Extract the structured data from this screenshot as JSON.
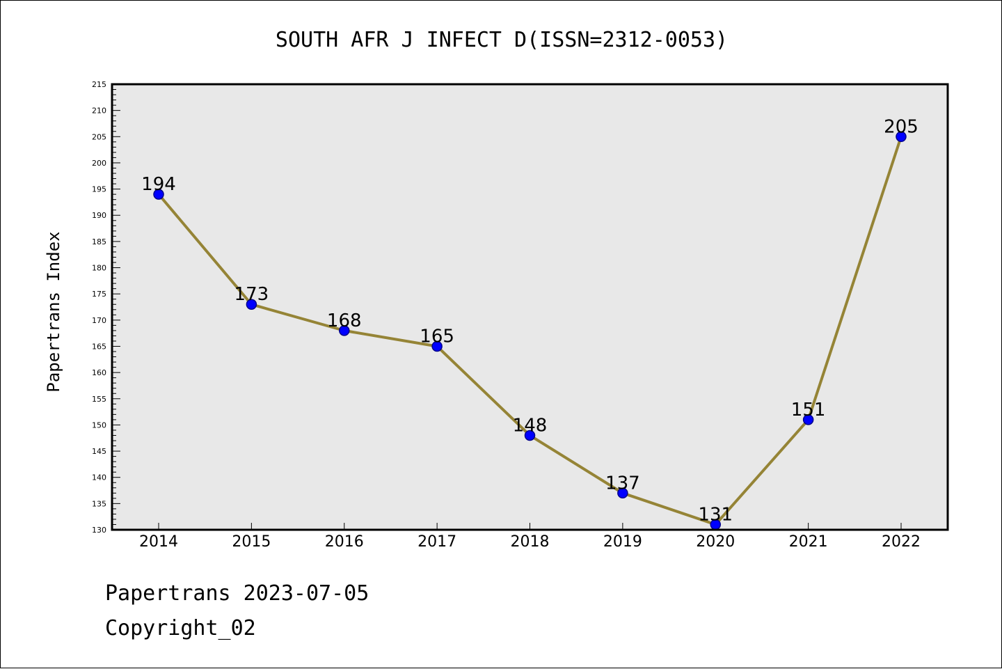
{
  "chart_data": {
    "type": "line",
    "title": "SOUTH AFR J INFECT D(ISSN=2312-0053)",
    "xlabel": "",
    "ylabel": "Papertrans Index",
    "categories": [
      "2014",
      "2015",
      "2016",
      "2017",
      "2018",
      "2019",
      "2020",
      "2021",
      "2022"
    ],
    "series": [
      {
        "values": [
          194,
          173,
          168,
          165,
          148,
          137,
          131,
          151,
          205
        ]
      }
    ],
    "data_labels": [
      "194",
      "173",
      "168",
      "165",
      "148",
      "137",
      "131",
      "151",
      "205"
    ],
    "ylim": [
      130,
      215
    ],
    "yticks": [
      130,
      135,
      140,
      145,
      150,
      155,
      160,
      165,
      170,
      175,
      180,
      185,
      190,
      195,
      200,
      205,
      210,
      215
    ],
    "grid": false,
    "legend": "none",
    "colors": {
      "line": "#958436",
      "marker": "#0000ff",
      "marker_edge": "#00008b",
      "plot_background": "#e8e8e8"
    }
  },
  "footer": {
    "line1": "Papertrans 2023-07-05",
    "line2": "Copyright_02"
  }
}
